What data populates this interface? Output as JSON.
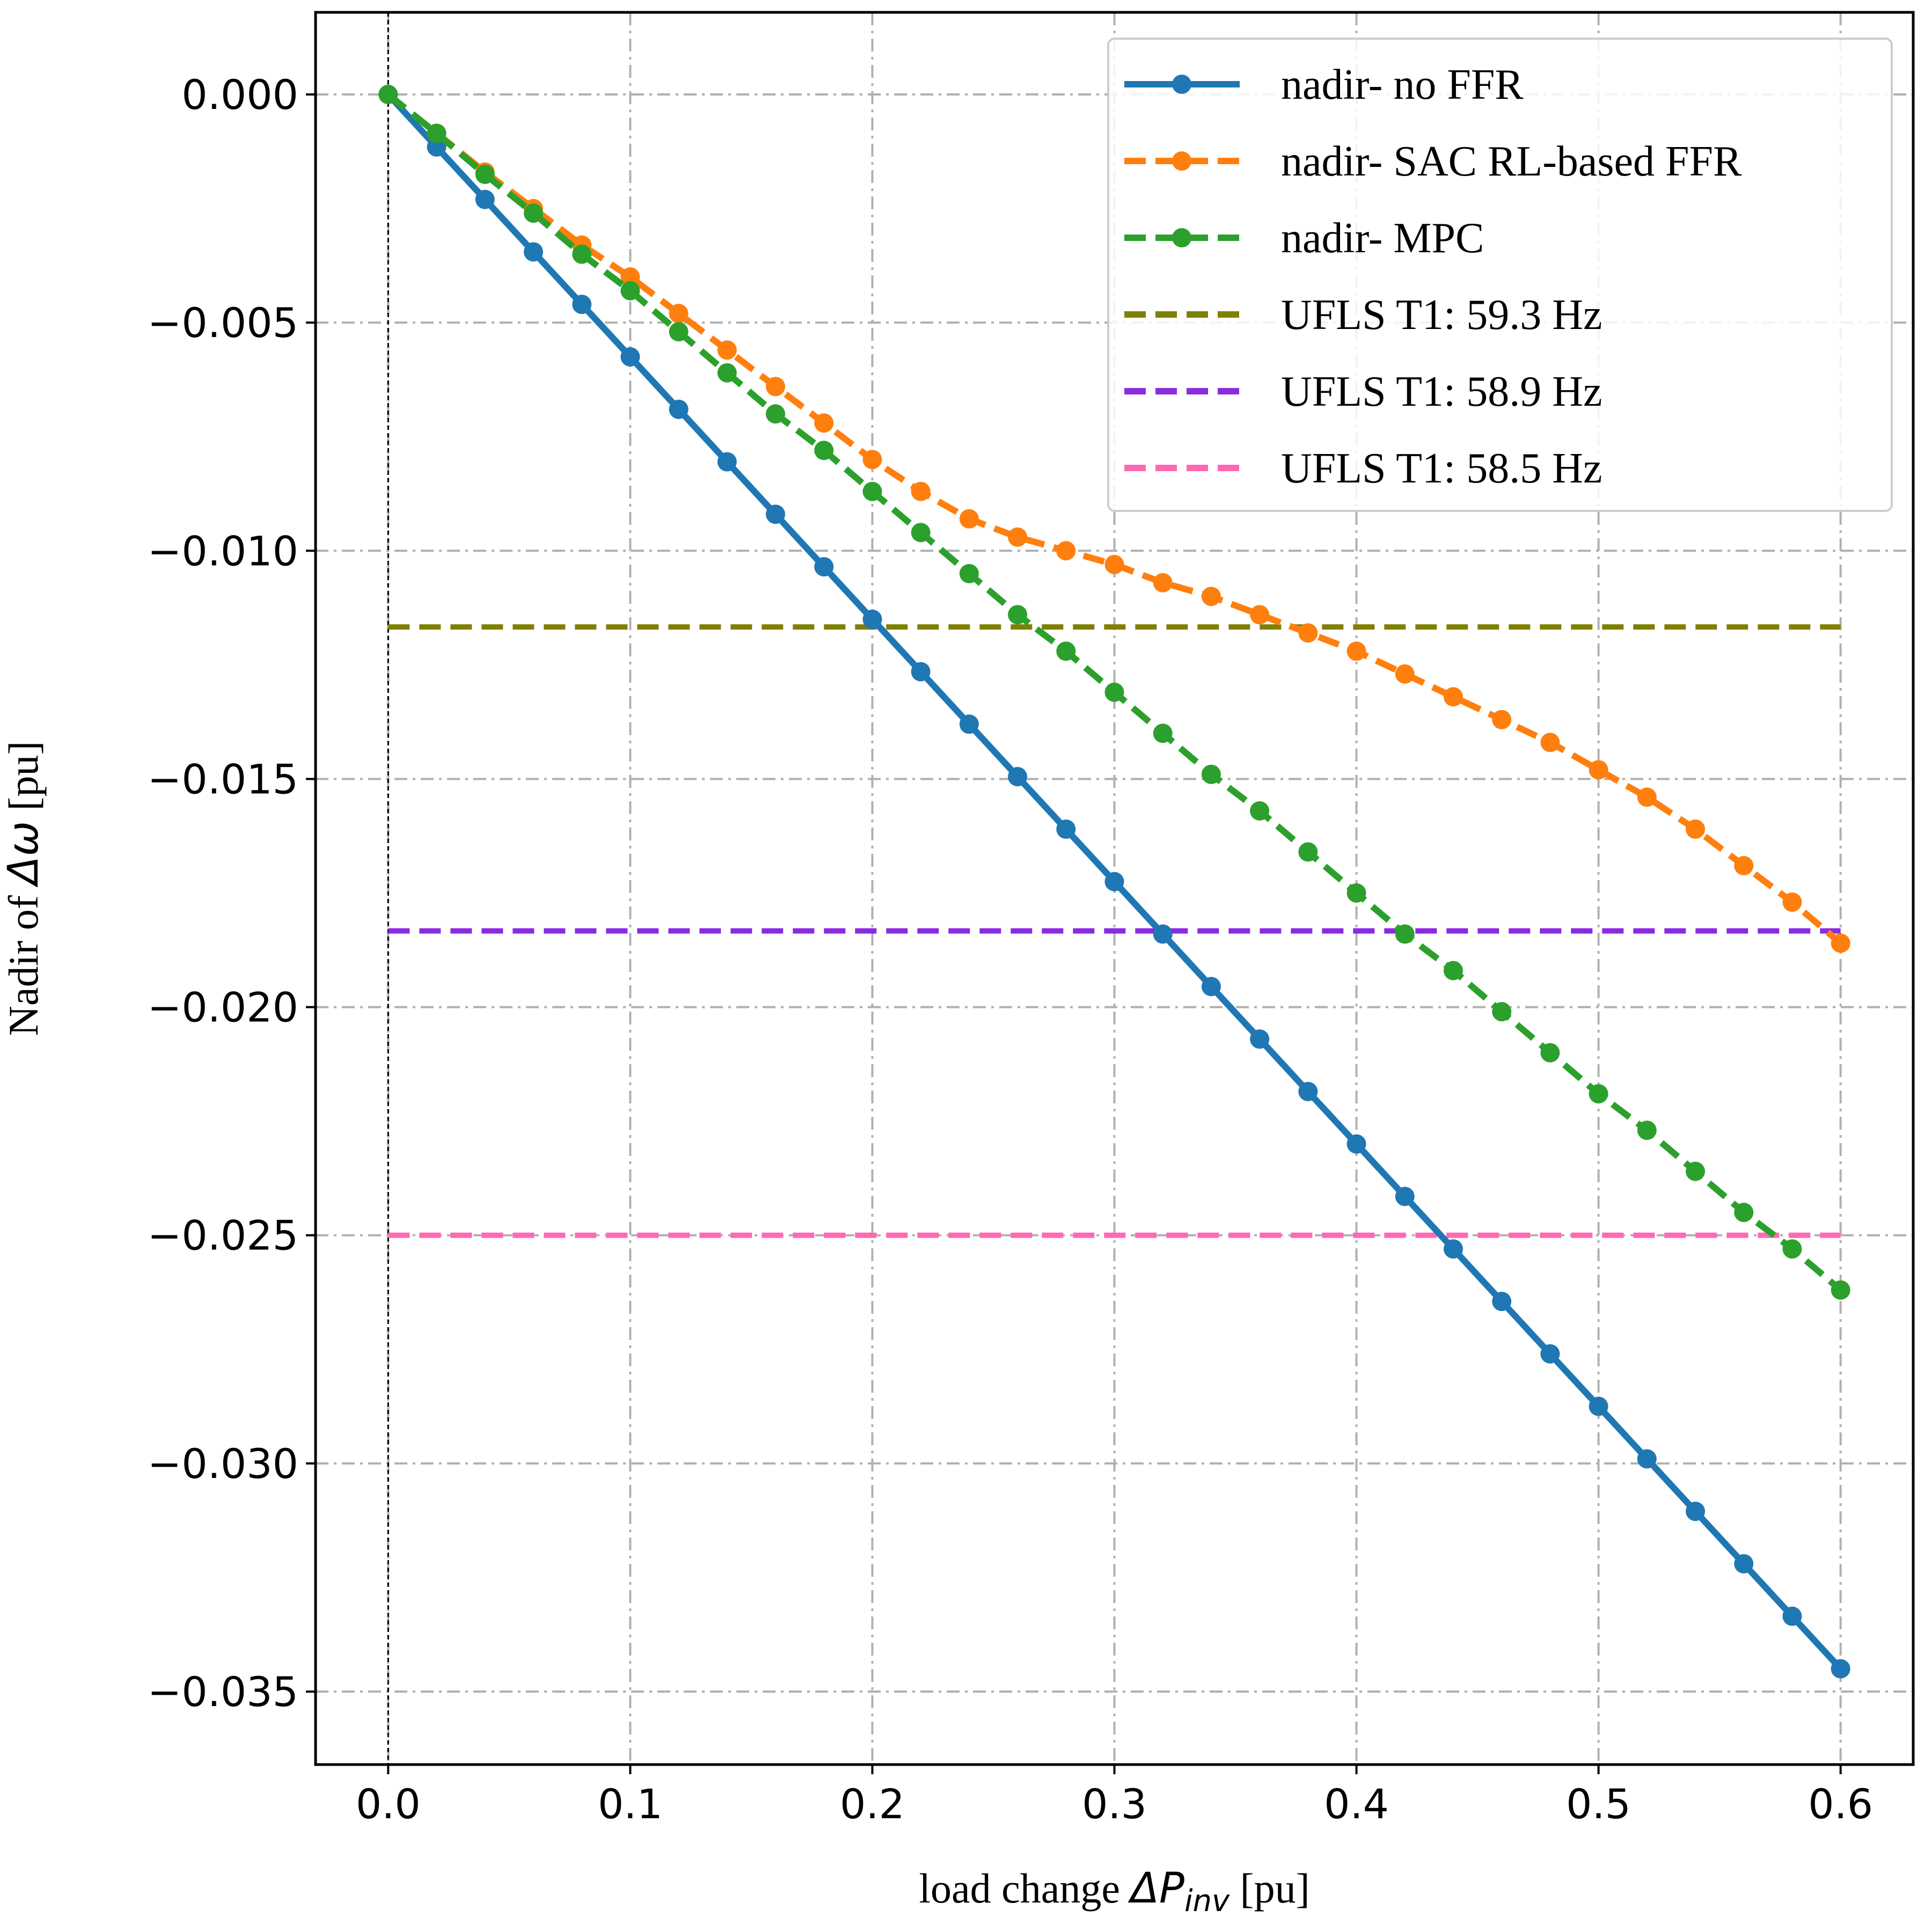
{
  "chart_data": {
    "type": "line",
    "xlabel": {
      "prefix": "load change ",
      "symbol": "ΔP",
      "subscript": "inv",
      "suffix": " [pu]"
    },
    "ylabel": {
      "prefix": "Nadir of ",
      "symbol": "Δω",
      "suffix": " [pu]"
    },
    "xlim": [
      -0.03,
      0.63
    ],
    "ylim": [
      -0.0366,
      0.0018
    ],
    "x_ticks": [
      0.0,
      0.1,
      0.2,
      0.3,
      0.4,
      0.5,
      0.6
    ],
    "x_tick_labels": [
      "0.0",
      "0.1",
      "0.2",
      "0.3",
      "0.4",
      "0.5",
      "0.6"
    ],
    "y_ticks": [
      0.0,
      -0.005,
      -0.01,
      -0.015,
      -0.02,
      -0.025,
      -0.03,
      -0.035
    ],
    "y_tick_labels": [
      "0.000",
      "−0.005",
      "−0.010",
      "−0.015",
      "−0.020",
      "−0.025",
      "−0.030",
      "−0.035"
    ],
    "grid": true,
    "legend_position": "top-right",
    "x": [
      0.0,
      0.02,
      0.04,
      0.06,
      0.08,
      0.1,
      0.12,
      0.14,
      0.16,
      0.18,
      0.2,
      0.22,
      0.24,
      0.26,
      0.28,
      0.3,
      0.32,
      0.34,
      0.36,
      0.38,
      0.4,
      0.42,
      0.44,
      0.46,
      0.48,
      0.5,
      0.52,
      0.54,
      0.56,
      0.58,
      0.6
    ],
    "series": [
      {
        "name": "nadir- no FFR",
        "color": "#1f77b4",
        "style": "solid-marker",
        "values": [
          0.0,
          -0.00115,
          -0.0023,
          -0.00345,
          -0.0046,
          -0.00575,
          -0.0069,
          -0.00805,
          -0.0092,
          -0.01035,
          -0.0115,
          -0.01265,
          -0.0138,
          -0.01495,
          -0.0161,
          -0.01725,
          -0.0184,
          -0.01955,
          -0.0207,
          -0.02185,
          -0.023,
          -0.02415,
          -0.0253,
          -0.02645,
          -0.0276,
          -0.02875,
          -0.0299,
          -0.03105,
          -0.0322,
          -0.03335,
          -0.0345
        ]
      },
      {
        "name": "nadir- SAC RL-based FFR",
        "color": "#ff7f0e",
        "style": "dashed-marker",
        "values": [
          0.0,
          -0.00085,
          -0.0017,
          -0.0025,
          -0.0033,
          -0.004,
          -0.0048,
          -0.0056,
          -0.0064,
          -0.0072,
          -0.008,
          -0.0087,
          -0.0093,
          -0.0097,
          -0.01,
          -0.0103,
          -0.0107,
          -0.011,
          -0.0114,
          -0.0118,
          -0.0122,
          -0.0127,
          -0.0132,
          -0.0137,
          -0.0142,
          -0.0148,
          -0.0154,
          -0.0161,
          -0.0169,
          -0.0177,
          -0.0186
        ]
      },
      {
        "name": "nadir- MPC",
        "color": "#2ca02c",
        "style": "dashed-marker",
        "values": [
          0.0,
          -0.00085,
          -0.00175,
          -0.0026,
          -0.0035,
          -0.0043,
          -0.0052,
          -0.0061,
          -0.007,
          -0.0078,
          -0.0087,
          -0.0096,
          -0.0105,
          -0.0114,
          -0.0122,
          -0.0131,
          -0.014,
          -0.0149,
          -0.0157,
          -0.0166,
          -0.0175,
          -0.0184,
          -0.0192,
          -0.0201,
          -0.021,
          -0.0219,
          -0.0227,
          -0.0236,
          -0.0245,
          -0.0253,
          -0.0262
        ]
      }
    ],
    "thresholds": [
      {
        "name": "UFLS T1: 59.3 Hz",
        "color": "#808000",
        "y": -0.01167
      },
      {
        "name": "UFLS T1: 58.9 Hz",
        "color": "#8a2be2",
        "y": -0.01833
      },
      {
        "name": "UFLS T1: 58.5 Hz",
        "color": "#ff69b4",
        "y": -0.025
      }
    ]
  }
}
